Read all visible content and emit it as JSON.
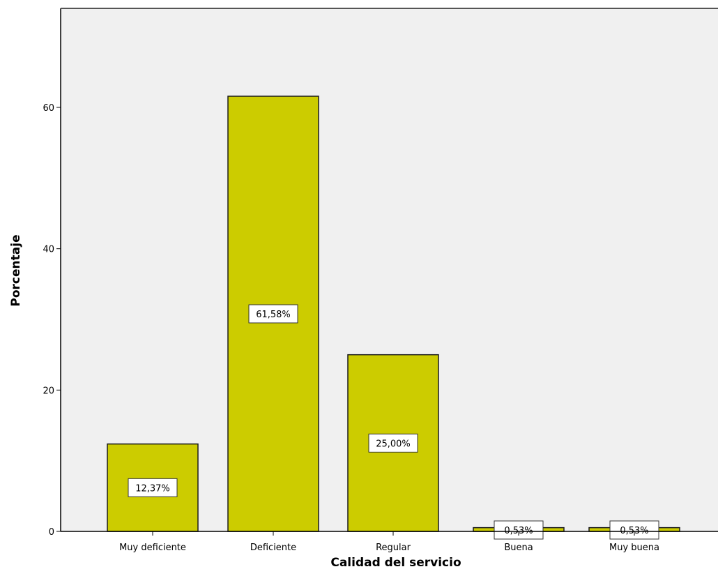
{
  "chart_data": {
    "type": "bar",
    "xlabel": "Calidad del servicio",
    "ylabel": "Porcentaje",
    "categories": [
      "Muy deficiente",
      "Deficiente",
      "Regular",
      "Buena",
      "Muy buena"
    ],
    "values": [
      12.37,
      61.58,
      25.0,
      0.53,
      0.53
    ],
    "data_labels": [
      "12,37%",
      "61,58%",
      "25,00%",
      "0,53%",
      "0,53%"
    ],
    "yticks": [
      0,
      20,
      40,
      60
    ],
    "ylim": [
      0,
      74
    ],
    "grid": false,
    "colors": {
      "bar_fill": "#CCCC00",
      "bar_stroke": "#1a1a1a",
      "plot_background": "#F0F0F0",
      "axis": "#000000"
    }
  }
}
